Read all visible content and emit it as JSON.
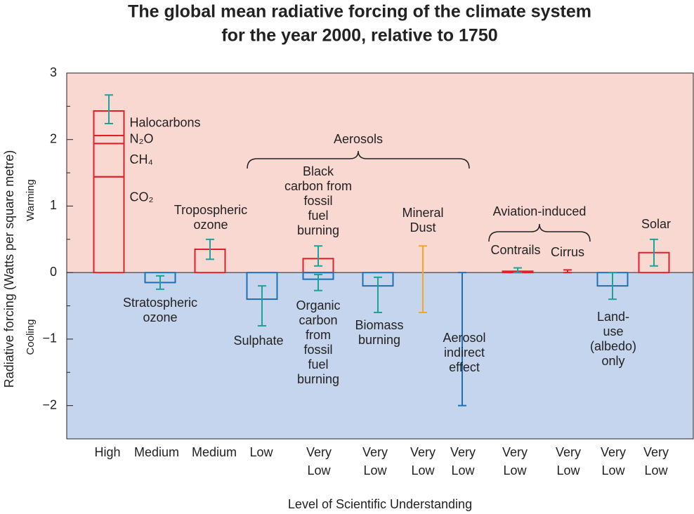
{
  "chart_data": {
    "type": "forcing",
    "title": [
      "The global mean radiative forcing of the climate system",
      "for the year 2000, relative to 1750"
    ],
    "ylabel": "Radiative forcing  (Watts per square metre)",
    "xlabel": "Level  of Scientific Understanding",
    "warming_label": "Warming",
    "cooling_label": "Cooling",
    "warming_color": "#f9d8d1",
    "cooling_color": "#c6d5ee",
    "ylim": [
      -2.5,
      3
    ],
    "yticks": [
      3,
      2,
      1,
      0,
      {
        "value": -1,
        "label": "−1"
      },
      {
        "value": -2,
        "label": "−2"
      }
    ],
    "yminor": [
      2.5,
      1.5,
      0.5,
      -0.5,
      -1.5,
      -2.5
    ],
    "groups": [
      {
        "label": "Aerosols"
      },
      {
        "label": "Aviation-induced"
      }
    ],
    "items": [
      {
        "understanding": [
          "High"
        ],
        "bars": [
          {
            "name": "CO₂",
            "value": 1.44,
            "color": "#e2202a"
          },
          {
            "name": "CH₄",
            "value": 0.5,
            "color": "#e2202a"
          },
          {
            "name": "N₂O",
            "value": 0.12,
            "color": "#e2202a"
          },
          {
            "name": "Halocarbons",
            "value": 0.37,
            "color": "#e2202a"
          }
        ],
        "errors": [
          {
            "low": 2.24,
            "high": 2.67,
            "color": "#1aa39a"
          }
        ],
        "labels": []
      },
      {
        "understanding": [
          "Medium"
        ],
        "bars": [
          {
            "value": -0.15,
            "color": "#1f6fb5"
          }
        ],
        "errors": [
          {
            "low": -0.25,
            "high": -0.05,
            "color": "#1aa39a"
          }
        ],
        "labels": [
          [
            "Stratospheric",
            "ozone"
          ]
        ]
      },
      {
        "understanding": [
          "Medium"
        ],
        "bars": [
          {
            "value": 0.35,
            "color": "#e2202a"
          }
        ],
        "errors": [
          {
            "low": 0.2,
            "high": 0.5,
            "color": "#1aa39a"
          }
        ],
        "labels": [
          [
            "Tropospheric",
            "ozone"
          ]
        ]
      },
      {
        "understanding": [
          "Low"
        ],
        "bars": [
          {
            "value": -0.4,
            "color": "#1f6fb5"
          }
        ],
        "errors": [
          {
            "low": -0.8,
            "high": -0.2,
            "color": "#1aa39a"
          }
        ],
        "labels": [
          [
            "Sulphate"
          ]
        ]
      },
      {
        "understanding": [
          "Very",
          "Low"
        ],
        "bars": [
          {
            "value": 0.21,
            "color": "#e2202a"
          },
          {
            "value": -0.1,
            "color": "#1f6fb5"
          }
        ],
        "errors": [
          {
            "low": 0.1,
            "high": 0.4,
            "color": "#1aa39a"
          },
          {
            "low": -0.27,
            "high": -0.03,
            "color": "#1aa39a"
          }
        ],
        "labels": [
          [
            "Black",
            "carbon from",
            "fossil",
            "fuel",
            "burning"
          ],
          [
            "Organic",
            "carbon",
            "from",
            "fossil",
            "fuel",
            "burning"
          ]
        ]
      },
      {
        "understanding": [
          "Very",
          "Low"
        ],
        "bars": [
          {
            "value": -0.2,
            "color": "#1f6fb5"
          }
        ],
        "errors": [
          {
            "low": -0.6,
            "high": -0.07,
            "color": "#1aa39a"
          }
        ],
        "labels": [
          [
            "Biomass",
            "burning"
          ]
        ]
      },
      {
        "understanding": [
          "Very",
          "Low"
        ],
        "bars": [],
        "errors": [
          {
            "low": -0.6,
            "high": 0.4,
            "color": "#f5a623"
          }
        ],
        "labels": [
          [
            "Mineral",
            "Dust"
          ]
        ]
      },
      {
        "understanding": [
          "Very",
          "Low"
        ],
        "bars": [],
        "errors": [
          {
            "low": -2,
            "high": 0,
            "color": "#1f6fb5"
          }
        ],
        "labels": [
          [
            "Aerosol",
            "indirect",
            "effect"
          ]
        ]
      },
      {
        "understanding": [
          "Very",
          "Low"
        ],
        "bars": [
          {
            "value": 0.02,
            "color": "#e2202a"
          }
        ],
        "errors": [
          {
            "low": 0,
            "high": 0.07,
            "color": "#1aa39a"
          }
        ],
        "labels": [
          [
            "Contrails"
          ]
        ]
      },
      {
        "understanding": [
          "Very",
          "Low"
        ],
        "bars": [],
        "errors": [
          {
            "low": 0,
            "high": 0.04,
            "color": "#e2202a"
          }
        ],
        "labels": [
          [
            "Cirrus"
          ]
        ]
      },
      {
        "understanding": [
          "Very",
          "Low"
        ],
        "bars": [
          {
            "value": -0.2,
            "color": "#1f6fb5"
          }
        ],
        "errors": [
          {
            "low": -0.4,
            "high": 0,
            "color": "#1aa39a"
          }
        ],
        "labels": [
          [
            "Land-",
            "use",
            "(albedo)",
            "only"
          ]
        ]
      },
      {
        "understanding": [
          "Very",
          "Low"
        ],
        "bars": [
          {
            "value": 0.3,
            "color": "#e2202a"
          }
        ],
        "errors": [
          {
            "low": 0.1,
            "high": 0.5,
            "color": "#1aa39a"
          }
        ],
        "labels": [
          [
            "Solar"
          ]
        ]
      }
    ]
  }
}
